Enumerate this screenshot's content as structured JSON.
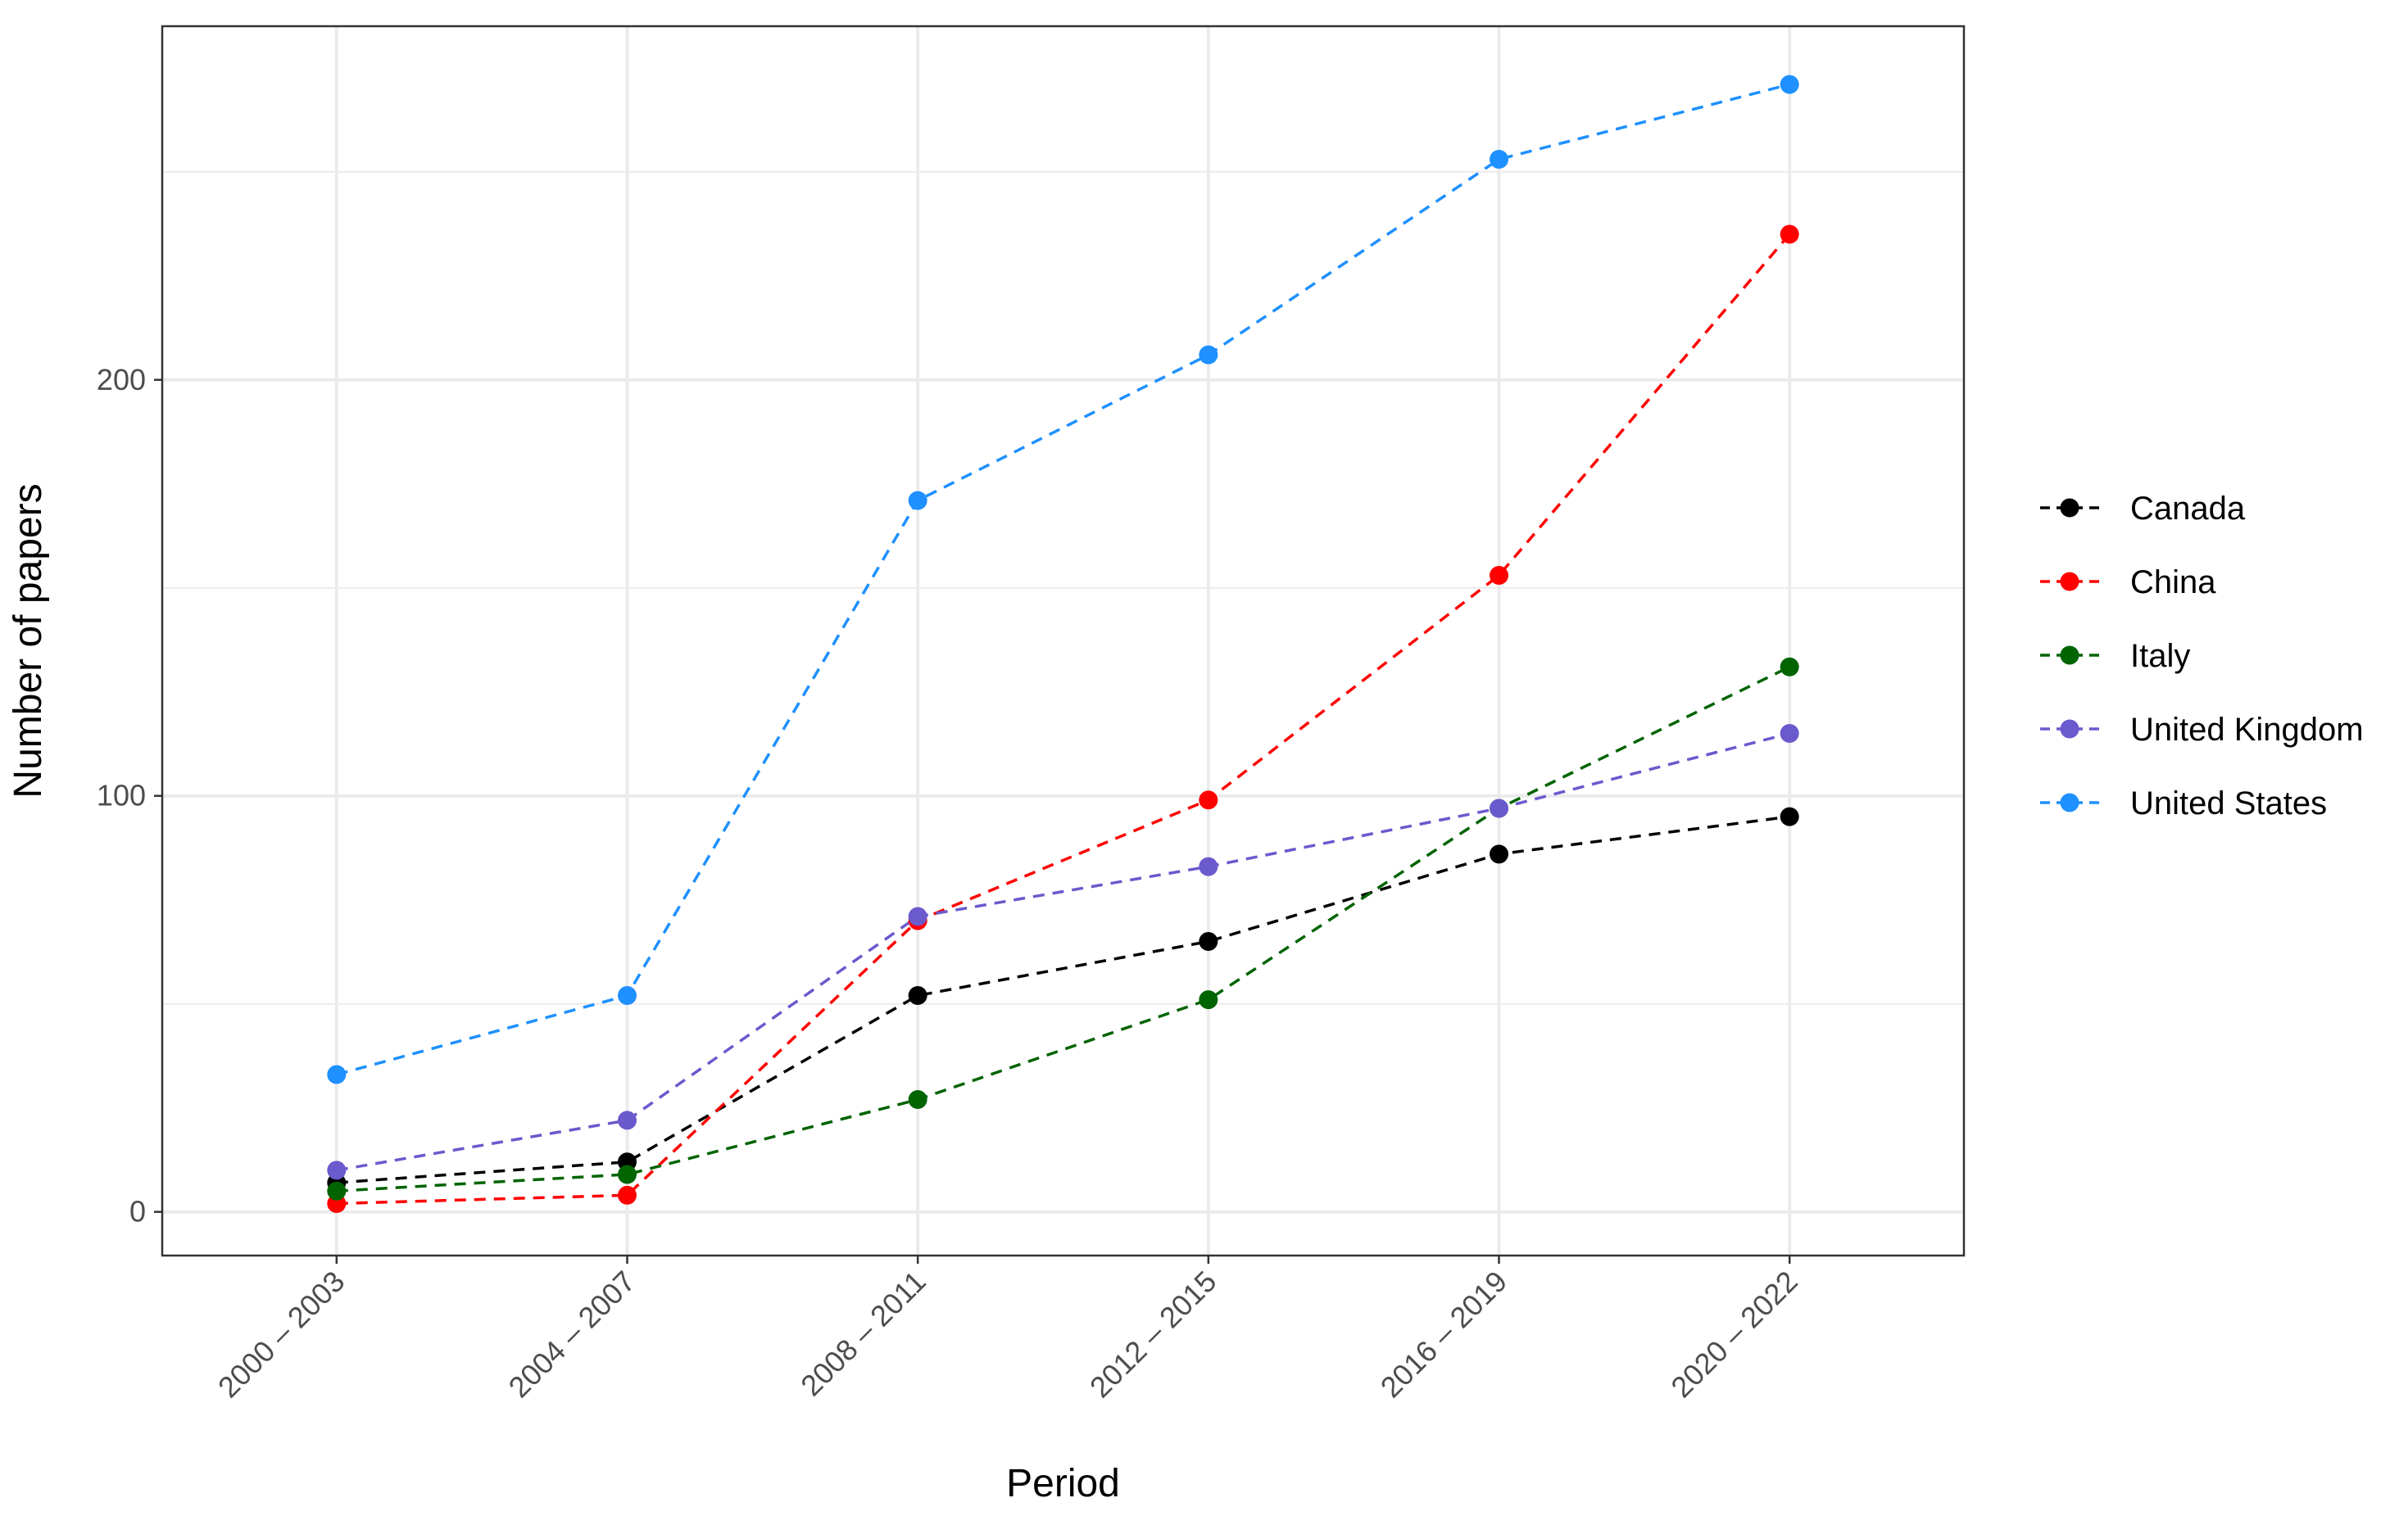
{
  "chart_data": {
    "type": "line",
    "xlabel": "Period",
    "ylabel": "Number of papers",
    "categories": [
      "2000 – 2003",
      "2004 – 2007",
      "2008 – 2011",
      "2012 – 2015",
      "2016 – 2019",
      "2020 – 2022"
    ],
    "ylim": [
      -10.5,
      285
    ],
    "yticks": [
      0,
      100,
      200
    ],
    "ytick_labels": [
      "0",
      "100",
      "200"
    ],
    "grid": true,
    "line_style": "dashed",
    "legend_position": "right",
    "series": [
      {
        "name": "Canada",
        "color": "#000000",
        "values": [
          7,
          12,
          52,
          65,
          86,
          95
        ]
      },
      {
        "name": "China",
        "color": "#ff0000",
        "values": [
          2,
          4,
          70,
          99,
          153,
          235
        ]
      },
      {
        "name": "Italy",
        "color": "#006400",
        "values": [
          5,
          9,
          27,
          51,
          97,
          131
        ]
      },
      {
        "name": "United Kingdom",
        "color": "#6a5acd",
        "values": [
          10,
          22,
          71,
          83,
          97,
          115
        ]
      },
      {
        "name": "United States",
        "color": "#1e90ff",
        "values": [
          33,
          52,
          171,
          206,
          253,
          271
        ]
      }
    ]
  }
}
